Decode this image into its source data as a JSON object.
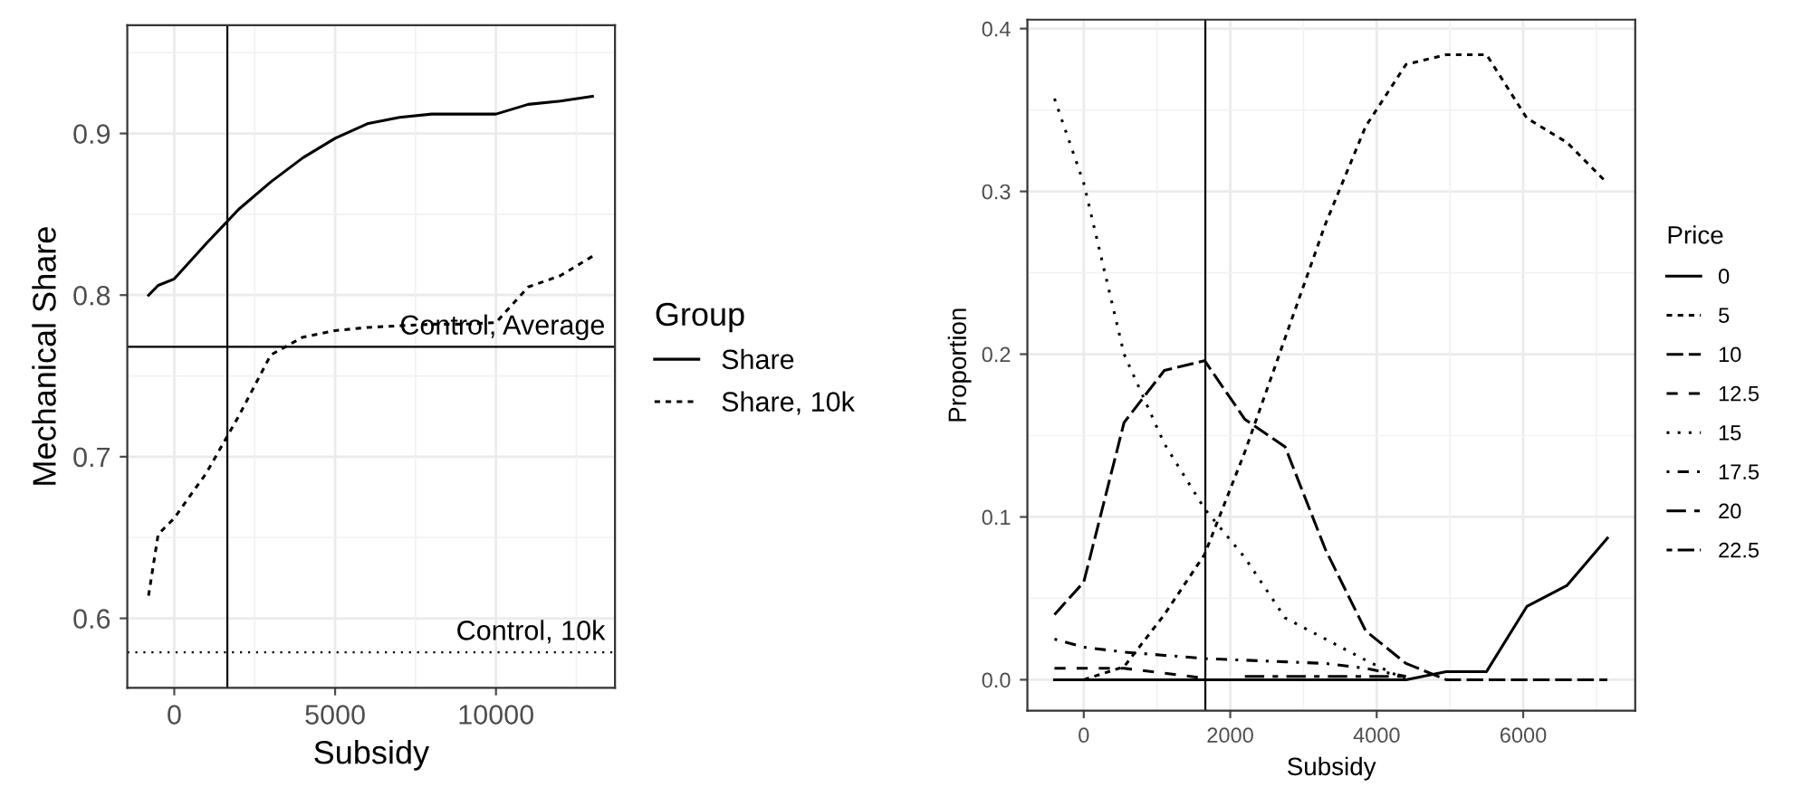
{
  "chart_data": [
    {
      "type": "line",
      "xlabel": "Subsidy",
      "ylabel": "Mechanical Share",
      "legend_title": "Group",
      "legend": "right",
      "grid": true,
      "xlim": [
        -1460,
        13700
      ],
      "ylim": [
        0.557,
        0.967
      ],
      "xticks": [
        0,
        5000,
        10000
      ],
      "yticks": [
        0.6,
        0.7,
        0.8,
        0.9
      ],
      "x": [
        -800,
        -500,
        0,
        1000,
        2000,
        3000,
        4000,
        5000,
        6000,
        7000,
        8000,
        9000,
        10000,
        11000,
        12000,
        13000
      ],
      "series": [
        {
          "name": "Share",
          "color": "#000000",
          "line_style": "solid",
          "values": [
            0.8,
            0.806,
            0.81,
            0.832,
            0.853,
            0.87,
            0.885,
            0.897,
            0.906,
            0.91,
            0.912,
            0.912,
            0.912,
            0.918,
            0.92,
            0.923
          ]
        },
        {
          "name": "Share, 10k",
          "color": "#000000",
          "line_style": "dashed",
          "values": [
            0.614,
            0.652,
            0.662,
            0.69,
            0.725,
            0.763,
            0.774,
            0.778,
            0.78,
            0.781,
            0.782,
            0.782,
            0.783,
            0.805,
            0.812,
            0.824
          ]
        }
      ],
      "ref_lines": [
        {
          "axis": "x",
          "value": 1650,
          "label": null,
          "line_style": "solid"
        },
        {
          "axis": "y",
          "value": 0.768,
          "label": "Control, Average",
          "line_style": "solid"
        },
        {
          "axis": "y",
          "value": 0.579,
          "label": "Control, 10k",
          "line_style": "dotted"
        }
      ]
    },
    {
      "type": "line",
      "xlabel": "Subsidy",
      "ylabel": "Proportion",
      "legend_title": "Price",
      "legend": "right",
      "grid": true,
      "xlim": [
        -770,
        7530
      ],
      "ylim": [
        -0.019,
        0.4055
      ],
      "xticks": [
        0,
        2000,
        4000,
        6000
      ],
      "yticks": [
        {
          "value": 0,
          "label": "0.0"
        },
        0.1,
        0.2,
        0.3,
        0.4
      ],
      "x": [
        -400,
        0,
        550,
        1100,
        1650,
        2200,
        2750,
        3300,
        3850,
        4400,
        4950,
        5500,
        6050,
        6600,
        7150
      ],
      "series": [
        {
          "name": "0",
          "color": "#000000",
          "line_style": "solid",
          "values": [
            0,
            0,
            0,
            0,
            0,
            0,
            0,
            0,
            0,
            0,
            0.005,
            0.005,
            0.045,
            0.058,
            0.087
          ]
        },
        {
          "name": "5",
          "color": "#000000",
          "line_style": "dashed",
          "values": [
            null,
            0,
            0.008,
            0.04,
            0.077,
            0.14,
            0.21,
            0.28,
            0.34,
            0.378,
            0.384,
            0.384,
            0.345,
            0.33,
            0.305
          ]
        },
        {
          "name": "10",
          "color": "#000000",
          "line_style": "longdash",
          "values": [
            0.04,
            0.06,
            0.158,
            0.19,
            0.196,
            0.16,
            0.143,
            0.08,
            0.03,
            0.01,
            0,
            0,
            0,
            0,
            0
          ]
        },
        {
          "name": "12.5",
          "color": "#000000",
          "line_style": "evendash",
          "values": [
            0.007,
            0.007,
            0.007,
            0.004,
            0.001,
            null,
            null,
            null,
            null,
            null,
            null,
            null,
            null,
            null,
            null
          ]
        },
        {
          "name": "15",
          "color": "#000000",
          "line_style": "dotted",
          "values": [
            0.357,
            0.305,
            0.2,
            0.145,
            0.105,
            0.075,
            0.038,
            0.025,
            0.012,
            0,
            null,
            null,
            null,
            null,
            null
          ]
        },
        {
          "name": "17.5",
          "color": "#000000",
          "line_style": "dotdash",
          "values": [
            0.025,
            0.02,
            0.017,
            0.015,
            0.013,
            0.012,
            0.011,
            0.01,
            0.007,
            0.002,
            null,
            null,
            null,
            null,
            null
          ]
        },
        {
          "name": "20",
          "color": "#000000",
          "line_style": "twodash",
          "values": [
            null,
            null,
            null,
            null,
            null,
            0.002,
            0.002,
            0.002,
            0.002,
            0.002,
            null,
            null,
            null,
            null,
            null
          ]
        },
        {
          "name": "22.5",
          "color": "#000000",
          "line_style": "dashdot",
          "values": [
            null,
            null,
            null,
            null,
            null,
            null,
            null,
            null,
            null,
            null,
            null,
            null,
            null,
            null,
            null
          ]
        }
      ],
      "ref_lines": [
        {
          "axis": "x",
          "value": 1660,
          "label": null,
          "line_style": "solid"
        }
      ]
    }
  ]
}
